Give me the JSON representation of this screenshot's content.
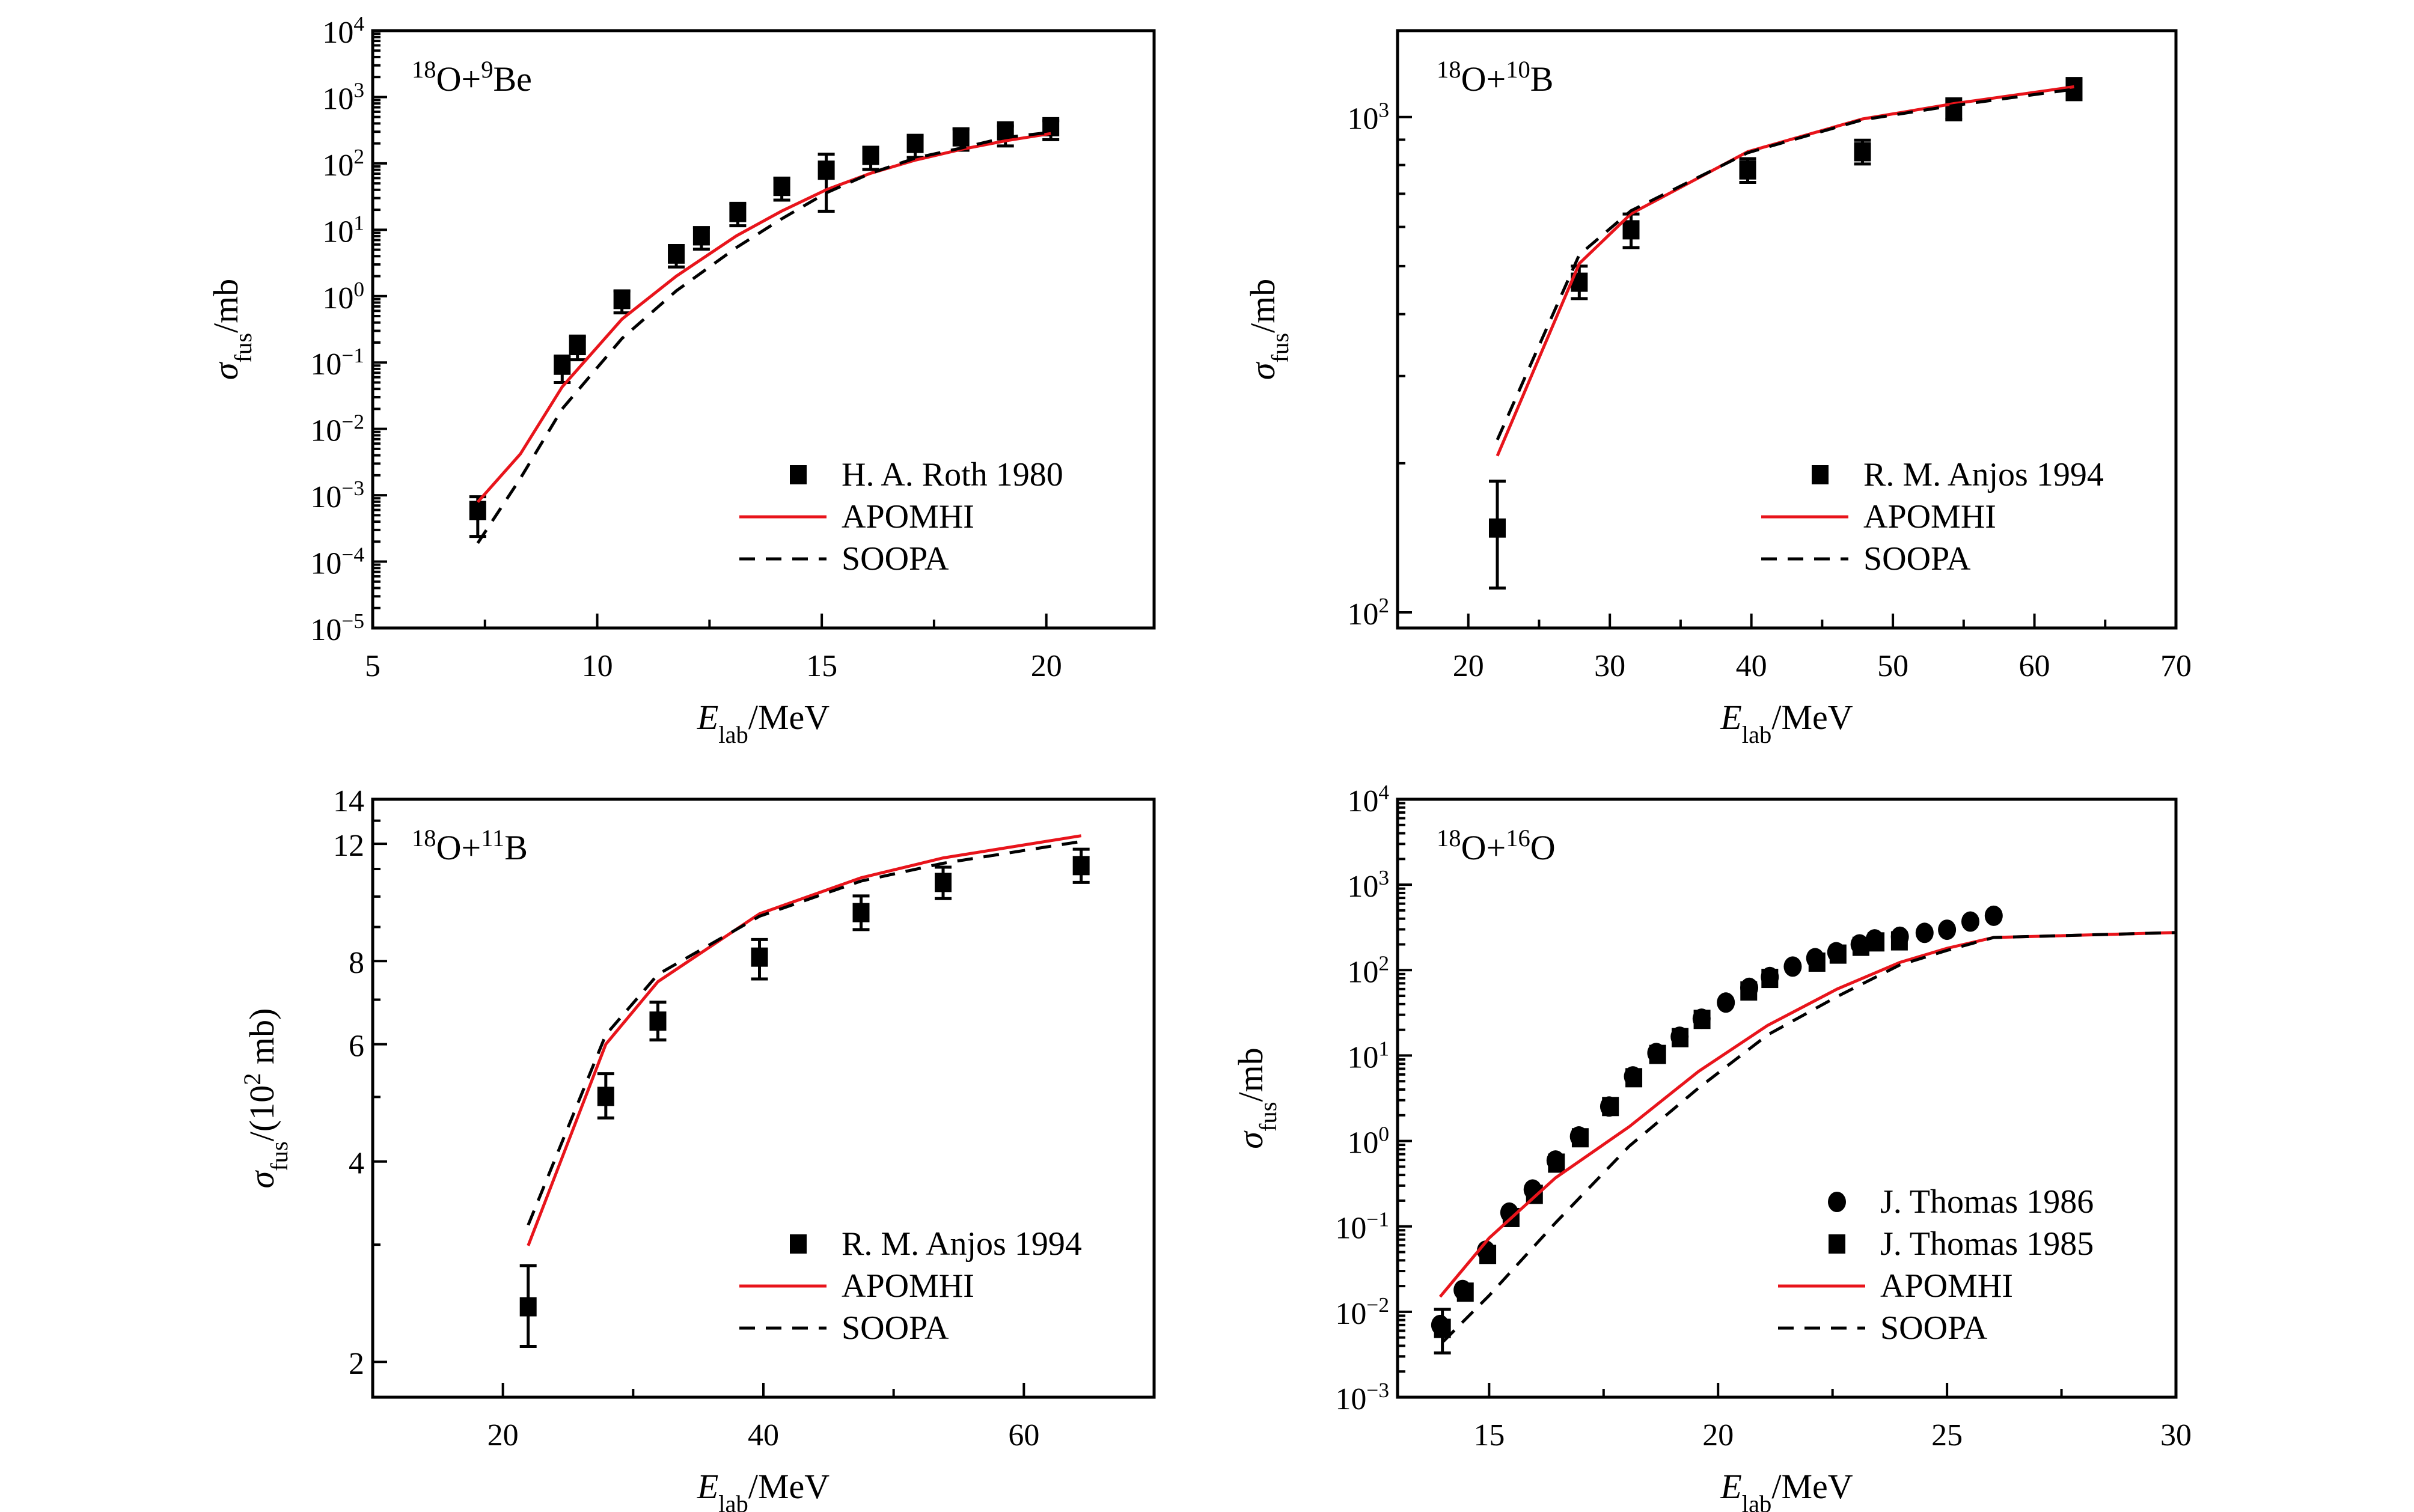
{
  "colors": {
    "apomhi": "#e8141b",
    "soopa": "#000000",
    "data": "#000000"
  },
  "chart_data": [
    {
      "type": "scatter",
      "title": [
        {
          "t": "18",
          "s": "sup"
        },
        {
          "t": "O+"
        },
        {
          "t": "9",
          "s": "sup"
        },
        {
          "t": "Be"
        }
      ],
      "xlabel": [
        {
          "t": "E",
          "s": "it"
        },
        {
          "t": "lab",
          "s": "sub"
        },
        {
          "t": "/MeV"
        }
      ],
      "ylabel": [
        {
          "t": "σ",
          "s": "it"
        },
        {
          "t": "fus",
          "s": "sub"
        },
        {
          "t": "/mb"
        }
      ],
      "xscale": "linear",
      "yscale": "log",
      "xlim": [
        5,
        22.4
      ],
      "ylim": [
        1e-05,
        10000.0
      ],
      "xticks": [
        {
          "v": 5,
          "label": "5"
        },
        {
          "v": 10,
          "label": "10"
        },
        {
          "v": 15,
          "label": "15"
        },
        {
          "v": 20,
          "label": "20"
        }
      ],
      "xminor": [
        7.5,
        12.5,
        17.5
      ],
      "yticks": [
        {
          "v": 1e-05,
          "label": "10",
          "sup": "−5"
        },
        {
          "v": 0.0001,
          "label": "10",
          "sup": "−4"
        },
        {
          "v": 0.001,
          "label": "10",
          "sup": "−3"
        },
        {
          "v": 0.01,
          "label": "10",
          "sup": "−2"
        },
        {
          "v": 0.1,
          "label": "10",
          "sup": "−1"
        },
        {
          "v": 1,
          "label": "10",
          "sup": "0"
        },
        {
          "v": 10,
          "label": "10",
          "sup": "1"
        },
        {
          "v": 100,
          "label": "10",
          "sup": "2"
        },
        {
          "v": 1000,
          "label": "10",
          "sup": "3"
        },
        {
          "v": 10000,
          "label": "10",
          "sup": "4"
        }
      ],
      "yminor_log": true,
      "legend_placement": "bottom-right",
      "series": [
        {
          "name": "H. A. Roth 1980",
          "kind": "points",
          "marker": "square",
          "x": [
            7.34,
            9.22,
            9.56,
            10.55,
            11.76,
            12.32,
            13.13,
            14.11,
            15.1,
            16.09,
            17.08,
            18.1,
            19.09,
            20.1
          ],
          "y": [
            0.00059,
            0.091,
            0.18,
            0.89,
            4.3,
            8.1,
            18.2,
            45,
            79,
            132,
            200,
            251,
            309,
            357
          ],
          "err_high": [
            0.00095,
            0.125,
            0.25,
            1.2,
            5.8,
            10.8,
            25,
            60,
            138,
            175,
            258,
            330,
            365,
            440
          ],
          "err_low": [
            0.00024,
            0.05,
            0.11,
            0.56,
            2.75,
            5.1,
            11.5,
            28,
            19,
            81,
            123,
            158,
            183,
            228
          ]
        },
        {
          "name": "APOMHI",
          "kind": "line",
          "style": "solid",
          "x": [
            7.34,
            8.29,
            9.22,
            10.55,
            11.76,
            13.1,
            14.1,
            15.1,
            16.09,
            17.08,
            18.1,
            19.09,
            20.1
          ],
          "y": [
            0.00079,
            0.0042,
            0.043,
            0.45,
            2.0,
            8.1,
            19,
            40,
            71,
            112,
            162,
            219,
            282
          ]
        },
        {
          "name": "SOOPA",
          "kind": "line",
          "style": "dashed",
          "x": [
            7.34,
            8.29,
            9.22,
            10.55,
            11.76,
            13.1,
            14.1,
            15.1,
            16.09,
            17.08,
            18.1,
            19.09,
            20.1
          ],
          "y": [
            0.00019,
            0.0018,
            0.02,
            0.23,
            1.2,
            5.4,
            14.5,
            36,
            71,
            120,
            170,
            245,
            295
          ]
        }
      ]
    },
    {
      "type": "scatter",
      "title": [
        {
          "t": "18",
          "s": "sup"
        },
        {
          "t": "O+"
        },
        {
          "t": "10",
          "s": "sup"
        },
        {
          "t": "B"
        }
      ],
      "xlabel": [
        {
          "t": "E",
          "s": "it"
        },
        {
          "t": "lab",
          "s": "sub"
        },
        {
          "t": "/MeV"
        }
      ],
      "ylabel": [
        {
          "t": "σ",
          "s": "it"
        },
        {
          "t": "fus",
          "s": "sub"
        },
        {
          "t": "/mb"
        }
      ],
      "xscale": "linear",
      "yscale": "log",
      "xlim": [
        15,
        70
      ],
      "ylim": [
        93,
        1494
      ],
      "xticks": [
        {
          "v": 20,
          "label": "20"
        },
        {
          "v": 30,
          "label": "30"
        },
        {
          "v": 40,
          "label": "40"
        },
        {
          "v": 50,
          "label": "50"
        },
        {
          "v": 60,
          "label": "60"
        },
        {
          "v": 70,
          "label": "70"
        }
      ],
      "xminor": [
        25,
        35,
        45,
        55,
        65
      ],
      "yticks": [
        {
          "v": 100,
          "label": "10",
          "sup": "2"
        },
        {
          "v": 1000,
          "label": "10",
          "sup": "3"
        }
      ],
      "yminor_log": true,
      "legend_placement": "bottom-right",
      "series": [
        {
          "name": "R. M. Anjos 1994",
          "kind": "points",
          "marker": "square",
          "x": [
            22.05,
            27.84,
            31.5,
            39.74,
            47.85,
            54.3,
            62.8
          ],
          "y": [
            148,
            464,
            592,
            782,
            851,
            1034,
            1138
          ],
          "err_high": [
            184,
            500,
            637,
            824,
            898,
            1088,
            1196
          ],
          "err_low": [
            112,
            430,
            545,
            738,
            804,
            987,
            1084
          ]
        },
        {
          "name": "APOMHI",
          "kind": "line",
          "style": "solid",
          "x": [
            22.05,
            27.84,
            31.5,
            39.74,
            47.85,
            54.3,
            62.8
          ],
          "y": [
            207,
            506,
            638,
            851,
            991,
            1064,
            1151
          ]
        },
        {
          "name": "SOOPA",
          "kind": "line",
          "style": "dashed",
          "x": [
            22.05,
            27.84,
            31.5,
            39.74,
            47.85,
            54.3,
            62.8
          ],
          "y": [
            223,
            527,
            647,
            847,
            987,
            1055,
            1138
          ]
        }
      ]
    },
    {
      "type": "scatter",
      "title": [
        {
          "t": "18",
          "s": "sup"
        },
        {
          "t": "O+"
        },
        {
          "t": "11",
          "s": "sup"
        },
        {
          "t": "B"
        }
      ],
      "xlabel": [
        {
          "t": "E",
          "s": "it"
        },
        {
          "t": "lab",
          "s": "sub"
        },
        {
          "t": "/MeV"
        }
      ],
      "ylabel": [
        {
          "t": "σ",
          "s": "it"
        },
        {
          "t": "fus",
          "s": "sub"
        },
        {
          "t": "/(10"
        },
        {
          "t": "2",
          "s": "sup"
        },
        {
          "t": " mb)"
        }
      ],
      "xscale": "linear",
      "yscale": "log",
      "xlim": [
        10,
        70
      ],
      "ylim": [
        1.77,
        14
      ],
      "xticks": [
        {
          "v": 20,
          "label": "20"
        },
        {
          "v": 40,
          "label": "40"
        },
        {
          "v": 60,
          "label": "60"
        }
      ],
      "xminor": [
        30,
        50
      ],
      "yticks": [
        {
          "v": 2,
          "label": "2"
        },
        {
          "v": 4,
          "label": "4"
        },
        {
          "v": 6,
          "label": "6"
        },
        {
          "v": 8,
          "label": "8"
        },
        {
          "v": 12,
          "label": "12"
        },
        {
          "v": 14,
          "label": "14"
        }
      ],
      "yminor": [
        3,
        5,
        7,
        9,
        10,
        11,
        13
      ],
      "legend_placement": "bottom-right",
      "series": [
        {
          "name": "R. M. Anjos 1994",
          "kind": "points",
          "marker": "square",
          "x": [
            21.94,
            27.9,
            31.9,
            39.7,
            47.5,
            53.8,
            64.4
          ],
          "y": [
            2.42,
            5.01,
            6.5,
            8.11,
            9.46,
            10.5,
            11.13
          ],
          "err_high": [
            2.79,
            5.42,
            6.94,
            8.62,
            10.02,
            11.07,
            11.78
          ],
          "err_low": [
            2.11,
            4.65,
            6.09,
            7.52,
            8.92,
            9.93,
            10.5
          ]
        },
        {
          "name": "APOMHI",
          "kind": "line",
          "style": "solid",
          "x": [
            21.94,
            27.9,
            31.9,
            39.7,
            47.5,
            53.8,
            64.4
          ],
          "y": [
            2.99,
            6.0,
            7.45,
            9.42,
            10.67,
            11.43,
            12.34
          ]
        },
        {
          "name": "SOOPA",
          "kind": "line",
          "style": "dashed",
          "x": [
            21.94,
            27.9,
            31.9,
            39.7,
            47.5,
            53.8,
            64.4
          ],
          "y": [
            3.21,
            6.2,
            7.64,
            9.34,
            10.55,
            11.22,
            12.1
          ]
        }
      ]
    },
    {
      "type": "scatter",
      "title": [
        {
          "t": "18",
          "s": "sup"
        },
        {
          "t": "O+"
        },
        {
          "t": "16",
          "s": "sup"
        },
        {
          "t": "O"
        }
      ],
      "xlabel": [
        {
          "t": "E",
          "s": "it"
        },
        {
          "t": "lab",
          "s": "sub"
        },
        {
          "t": "/MeV"
        }
      ],
      "ylabel": [
        {
          "t": "σ",
          "s": "it"
        },
        {
          "t": "fus",
          "s": "sub"
        },
        {
          "t": "/mb"
        }
      ],
      "xscale": "linear",
      "yscale": "log",
      "xlim": [
        13,
        30
      ],
      "ylim": [
        0.001,
        10000.0
      ],
      "xticks": [
        {
          "v": 15,
          "label": "15"
        },
        {
          "v": 20,
          "label": "20"
        },
        {
          "v": 25,
          "label": "25"
        },
        {
          "v": 30,
          "label": "30"
        }
      ],
      "xminor": [
        17.5,
        22.5,
        27.5
      ],
      "yticks": [
        {
          "v": 0.001,
          "label": "10",
          "sup": "−3"
        },
        {
          "v": 0.01,
          "label": "10",
          "sup": "−2"
        },
        {
          "v": 0.1,
          "label": "10",
          "sup": "−1"
        },
        {
          "v": 1,
          "label": "10",
          "sup": "0"
        },
        {
          "v": 10,
          "label": "10",
          "sup": "1"
        },
        {
          "v": 100,
          "label": "10",
          "sup": "2"
        },
        {
          "v": 1000,
          "label": "10",
          "sup": "3"
        },
        {
          "v": 10000,
          "label": "10",
          "sup": "4"
        }
      ],
      "yminor_log": true,
      "legend_placement": "bottom-right",
      "series": [
        {
          "name": "J. Thomas 1986",
          "kind": "points",
          "marker": "circle",
          "x": [
            13.93,
            14.42,
            14.93,
            15.44,
            15.95,
            16.45,
            16.96,
            17.62,
            18.14,
            18.65,
            19.16,
            19.64,
            20.17,
            20.68,
            21.13,
            21.63,
            22.12,
            22.58,
            23.09,
            23.42,
            23.97,
            24.51,
            25.0,
            25.51,
            26.02
          ],
          "y": [
            0.007,
            0.018,
            0.052,
            0.145,
            0.27,
            0.59,
            1.13,
            2.53,
            5.7,
            10.7,
            16.6,
            27,
            41.7,
            62,
            83,
            110,
            138,
            162,
            200,
            229,
            246,
            273,
            297,
            370,
            433
          ]
        },
        {
          "name": "J. Thomas 1985",
          "kind": "points",
          "marker": "square",
          "x": [
            13.98,
            14.48,
            14.97,
            15.48,
            15.99,
            16.47,
            16.99,
            17.65,
            18.16,
            18.68,
            19.17,
            19.65,
            20.67,
            21.13,
            22.16,
            22.62,
            23.12,
            23.45,
            23.96
          ],
          "y": [
            0.0064,
            0.017,
            0.047,
            0.127,
            0.237,
            0.55,
            1.09,
            2.53,
            5.5,
            10.3,
            16.2,
            26.5,
            57,
            80,
            124,
            154,
            190,
            214,
            220
          ],
          "err_high": [
            0.0107,
            null,
            null,
            null,
            null,
            null,
            null,
            null,
            null,
            null,
            null,
            null,
            null,
            null,
            null,
            null,
            null,
            null,
            null
          ],
          "err_low": [
            0.0033,
            null,
            null,
            null,
            null,
            null,
            null,
            null,
            null,
            null,
            null,
            null,
            null,
            null,
            null,
            null,
            null,
            null,
            null
          ]
        },
        {
          "name": "APOMHI",
          "kind": "line",
          "style": "solid",
          "x": [
            13.93,
            15.0,
            16.45,
            18.06,
            19.57,
            21.08,
            22.6,
            23.97,
            25.0,
            26.02,
            30
          ],
          "y": [
            0.015,
            0.073,
            0.37,
            1.47,
            6.5,
            22.5,
            60,
            123,
            180,
            241,
            275
          ]
        },
        {
          "name": "SOOPA",
          "kind": "line",
          "style": "dashed",
          "x": [
            14.0,
            15.0,
            16.45,
            18.06,
            19.57,
            21.08,
            22.6,
            23.97,
            25.0,
            26.02,
            30
          ],
          "y": [
            0.0045,
            0.0155,
            0.11,
            0.87,
            4.15,
            17.4,
            49,
            115,
            170,
            241,
            275
          ]
        }
      ]
    }
  ]
}
